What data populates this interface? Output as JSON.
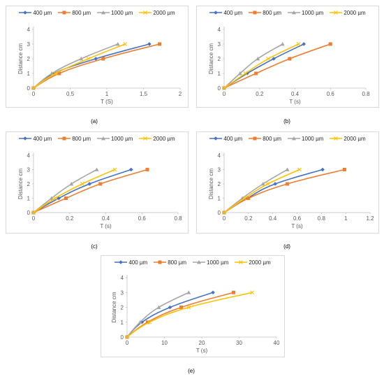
{
  "chart_data": [
    {
      "panel": "(a)",
      "type": "line",
      "xlabel": "T (S)",
      "ylabel": "Distance cm",
      "xlim": [
        0,
        2
      ],
      "ylim": [
        0,
        4
      ],
      "xticks": [
        0,
        0.5,
        1,
        1.5,
        2
      ],
      "yticks": [
        0,
        1,
        2,
        3,
        4
      ],
      "xtick_labels": [
        "0",
        "0.5",
        "1",
        "1.5",
        "2"
      ],
      "legend": "top",
      "series": [
        {
          "name": "400 µm",
          "color": "#4472c4",
          "marker": "diamond",
          "x": [
            0,
            0.28,
            0.85,
            1.58
          ],
          "y": [
            0,
            1,
            2,
            3
          ]
        },
        {
          "name": "800 µm",
          "color": "#ed7d31",
          "marker": "square",
          "x": [
            0,
            0.35,
            0.95,
            1.72
          ],
          "y": [
            0,
            1,
            2,
            3
          ]
        },
        {
          "name": "1000 µm",
          "color": "#a5a5a5",
          "marker": "triangle",
          "x": [
            0,
            0.25,
            0.65,
            1.15
          ],
          "y": [
            0,
            1,
            2,
            3
          ]
        },
        {
          "name": "2000 µm",
          "color": "#ffc000",
          "marker": "x",
          "x": [
            0,
            0.3,
            0.75,
            1.25
          ],
          "y": [
            0,
            1,
            2,
            3
          ]
        }
      ]
    },
    {
      "panel": "(b)",
      "type": "line",
      "xlabel": "T (s)",
      "ylabel": "Distance cm",
      "xlim": [
        0,
        0.8
      ],
      "ylim": [
        0,
        4
      ],
      "xticks": [
        0,
        0.2,
        0.4,
        0.6,
        0.8
      ],
      "yticks": [
        0,
        1,
        2,
        3,
        4
      ],
      "xtick_labels": [
        "0",
        "0.2",
        "0.4",
        "0.6",
        "0.8"
      ],
      "legend": "top",
      "series": [
        {
          "name": "400 µm",
          "color": "#4472c4",
          "marker": "diamond",
          "x": [
            0,
            0.13,
            0.28,
            0.45
          ],
          "y": [
            0,
            1,
            2,
            3
          ]
        },
        {
          "name": "800 µm",
          "color": "#ed7d31",
          "marker": "square",
          "x": [
            0,
            0.18,
            0.37,
            0.6
          ],
          "y": [
            0,
            1,
            2,
            3
          ]
        },
        {
          "name": "1000 µm",
          "color": "#a5a5a5",
          "marker": "triangle",
          "x": [
            0,
            0.09,
            0.19,
            0.33
          ],
          "y": [
            0,
            1,
            2,
            3
          ]
        },
        {
          "name": "2000 µm",
          "color": "#ffc000",
          "marker": "x",
          "x": [
            0,
            0.12,
            0.25,
            0.42
          ],
          "y": [
            0,
            1,
            2,
            3
          ]
        }
      ]
    },
    {
      "panel": "(c)",
      "type": "line",
      "xlabel": "T (s)",
      "ylabel": "Distance cm",
      "xlim": [
        0,
        0.8
      ],
      "ylim": [
        0,
        4
      ],
      "xticks": [
        0,
        0.2,
        0.4,
        0.6,
        0.8
      ],
      "yticks": [
        0,
        1,
        2,
        3,
        4
      ],
      "xtick_labels": [
        "0",
        "0.2",
        "0.4",
        "0.6",
        "0.8"
      ],
      "legend": "top",
      "series": [
        {
          "name": "400 µm",
          "color": "#4472c4",
          "marker": "diamond",
          "x": [
            0,
            0.14,
            0.31,
            0.54
          ],
          "y": [
            0,
            1,
            2,
            3
          ]
        },
        {
          "name": "800 µm",
          "color": "#ed7d31",
          "marker": "square",
          "x": [
            0,
            0.18,
            0.37,
            0.63
          ],
          "y": [
            0,
            1,
            2,
            3
          ]
        },
        {
          "name": "1000 µm",
          "color": "#a5a5a5",
          "marker": "triangle",
          "x": [
            0,
            0.1,
            0.21,
            0.35
          ],
          "y": [
            0,
            1,
            2,
            3
          ]
        },
        {
          "name": "2000 µm",
          "color": "#ffc000",
          "marker": "x",
          "x": [
            0,
            0.12,
            0.27,
            0.45
          ],
          "y": [
            0,
            1,
            2,
            3
          ]
        }
      ]
    },
    {
      "panel": "(d)",
      "type": "line",
      "xlabel": "T (s)",
      "ylabel": "Distance cm",
      "xlim": [
        0,
        1.2
      ],
      "ylim": [
        0,
        4
      ],
      "xticks": [
        0,
        0.2,
        0.4,
        0.6,
        0.8,
        1,
        1.2
      ],
      "yticks": [
        0,
        1,
        2,
        3,
        4
      ],
      "xtick_labels": [
        "0",
        "0.2",
        "0.4",
        "0.6",
        "0.8",
        "1",
        "1.2"
      ],
      "legend": "top",
      "series": [
        {
          "name": "400 µm",
          "color": "#4472c4",
          "marker": "diamond",
          "x": [
            0,
            0.19,
            0.42,
            0.81
          ],
          "y": [
            0,
            1,
            2,
            3
          ]
        },
        {
          "name": "800 µm",
          "color": "#ed7d31",
          "marker": "square",
          "x": [
            0,
            0.2,
            0.52,
            0.99
          ],
          "y": [
            0,
            1,
            2,
            3
          ]
        },
        {
          "name": "1000 µm",
          "color": "#a5a5a5",
          "marker": "triangle",
          "x": [
            0,
            0.15,
            0.32,
            0.52
          ],
          "y": [
            0,
            1,
            2,
            3
          ]
        },
        {
          "name": "2000 µm",
          "color": "#ffc000",
          "marker": "x",
          "x": [
            0,
            0.17,
            0.36,
            0.62
          ],
          "y": [
            0,
            1,
            2,
            3
          ]
        }
      ]
    },
    {
      "panel": "(e)",
      "type": "line",
      "xlabel": "T (s)",
      "ylabel": "Distance cm",
      "xlim": [
        0,
        40
      ],
      "ylim": [
        0,
        4
      ],
      "xticks": [
        0,
        10,
        20,
        30,
        40
      ],
      "yticks": [
        0,
        1,
        2,
        3,
        4
      ],
      "xtick_labels": [
        "0",
        "10",
        "20",
        "30",
        "40"
      ],
      "legend": "top",
      "series": [
        {
          "name": "400 µm",
          "color": "#4472c4",
          "marker": "diamond",
          "x": [
            0,
            4,
            11.5,
            23
          ],
          "y": [
            0,
            1,
            2,
            3
          ]
        },
        {
          "name": "800 µm",
          "color": "#ed7d31",
          "marker": "square",
          "x": [
            0,
            5.5,
            14.5,
            28.5
          ],
          "y": [
            0,
            1,
            2,
            3
          ]
        },
        {
          "name": "1000 µm",
          "color": "#a5a5a5",
          "marker": "triangle",
          "x": [
            0,
            3.5,
            8.5,
            16.5
          ],
          "y": [
            0,
            1,
            2,
            3
          ]
        },
        {
          "name": "2000 µm",
          "color": "#ffc000",
          "marker": "x",
          "x": [
            0,
            6,
            16.5,
            33.5
          ],
          "y": [
            0,
            1,
            2,
            3
          ]
        }
      ]
    }
  ]
}
